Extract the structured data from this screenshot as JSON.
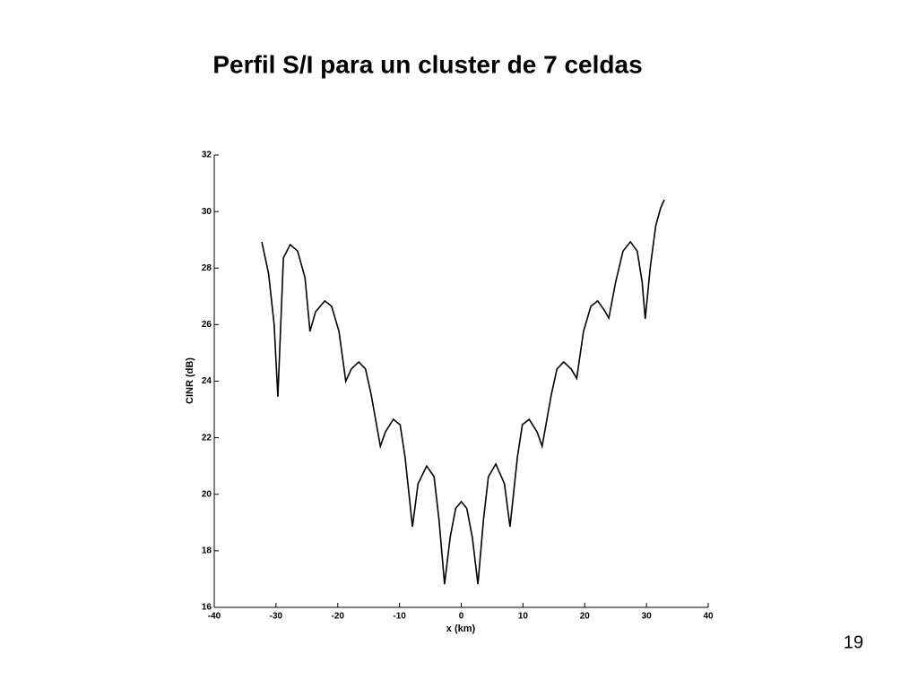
{
  "chart_data": {
    "type": "line",
    "title": "Perfil S/I para un cluster de 7 celdas",
    "x_label": "x (km)",
    "y_label": "CINR (dB)",
    "color": "#000000",
    "x": [
      -32.3,
      -31.2,
      -30.3,
      -29.7,
      -28.8,
      -27.7,
      -26.5,
      -25.3,
      -24.5,
      -23.6,
      -22.1,
      -21.0,
      -19.8,
      -18.7,
      -17.8,
      -16.6,
      -15.5,
      -14.6,
      -13.1,
      -12.3,
      -11.0,
      -9.9,
      -9.1,
      -7.9,
      -7.0,
      -5.6,
      -4.4,
      -3.6,
      -2.7,
      -1.8,
      -0.9,
      0,
      0.9,
      1.8,
      2.7,
      3.6,
      4.4,
      5.6,
      7.0,
      7.9,
      9.1,
      9.9,
      11.0,
      12.3,
      13.1,
      14.6,
      15.5,
      16.6,
      17.8,
      18.7,
      19.8,
      21.0,
      22.1,
      23.2,
      23.9,
      25.0,
      26.2,
      27.4,
      28.5,
      29.3,
      29.8,
      30.6,
      31.5,
      32.3,
      32.9
    ],
    "values": [
      28.93,
      27.8,
      26.0,
      23.45,
      28.36,
      28.83,
      28.6,
      27.66,
      25.76,
      26.45,
      26.84,
      26.65,
      25.76,
      24.0,
      24.43,
      24.68,
      24.43,
      23.54,
      21.7,
      22.2,
      22.65,
      22.46,
      21.32,
      18.85,
      20.37,
      21.0,
      20.62,
      19.1,
      16.82,
      18.47,
      19.5,
      19.74,
      19.5,
      18.47,
      16.82,
      19.1,
      20.62,
      21.07,
      20.37,
      18.85,
      21.32,
      22.46,
      22.65,
      22.2,
      21.7,
      23.54,
      24.43,
      24.68,
      24.43,
      24.1,
      25.76,
      26.65,
      26.84,
      26.5,
      26.23,
      27.5,
      28.6,
      28.93,
      28.6,
      27.5,
      26.2,
      28.0,
      29.5,
      30.13,
      30.42
    ],
    "xlim": [
      -40,
      40
    ],
    "xticks": [
      -40,
      -30,
      -20,
      -10,
      0,
      10,
      20,
      30,
      40
    ],
    "ylim": [
      16,
      32
    ],
    "yticks": [
      16,
      18,
      20,
      22,
      24,
      26,
      28,
      30,
      32
    ]
  },
  "page_number": "19"
}
